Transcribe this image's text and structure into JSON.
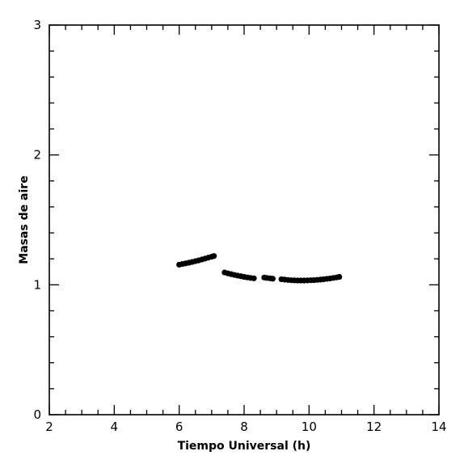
{
  "chart_data": {
    "type": "scatter",
    "xlabel": "Tiempo Universal (h)",
    "ylabel": "Masas de aire",
    "xlim": [
      2,
      14
    ],
    "ylim": [
      0,
      3
    ],
    "x_ticks": [
      "2",
      "4",
      "6",
      "8",
      "10",
      "12",
      "14"
    ],
    "y_ticks": [
      "0",
      "1",
      "2",
      "3"
    ],
    "grid": false,
    "marker_color": "#000000",
    "series": [
      {
        "x": [
          6.0,
          6.1,
          6.2,
          6.3,
          6.4,
          6.5,
          6.6,
          6.7,
          6.8,
          6.9,
          7.0,
          7.07
        ],
        "y": [
          1.155,
          1.16,
          1.165,
          1.17,
          1.176,
          1.182,
          1.188,
          1.195,
          1.202,
          1.209,
          1.216,
          1.222
        ]
      },
      {
        "x": [
          7.4,
          7.5,
          7.6,
          7.7,
          7.8,
          7.9,
          8.0,
          8.1,
          8.2,
          8.3
        ],
        "y": [
          1.095,
          1.088,
          1.082,
          1.076,
          1.071,
          1.066,
          1.061,
          1.057,
          1.053,
          1.05
        ]
      },
      {
        "x": [
          8.62,
          8.7,
          8.8,
          8.88
        ],
        "y": [
          1.056,
          1.053,
          1.05,
          1.047
        ]
      },
      {
        "x": [
          9.15,
          9.25,
          9.35,
          9.45,
          9.55,
          9.65,
          9.75,
          9.85,
          9.95,
          10.05,
          10.15,
          10.25,
          10.35,
          10.45,
          10.55,
          10.65,
          10.75,
          10.85,
          10.93
        ],
        "y": [
          1.043,
          1.04,
          1.037,
          1.035,
          1.034,
          1.033,
          1.033,
          1.033,
          1.034,
          1.035,
          1.036,
          1.038,
          1.04,
          1.043,
          1.046,
          1.049,
          1.053,
          1.057,
          1.061
        ]
      }
    ]
  }
}
